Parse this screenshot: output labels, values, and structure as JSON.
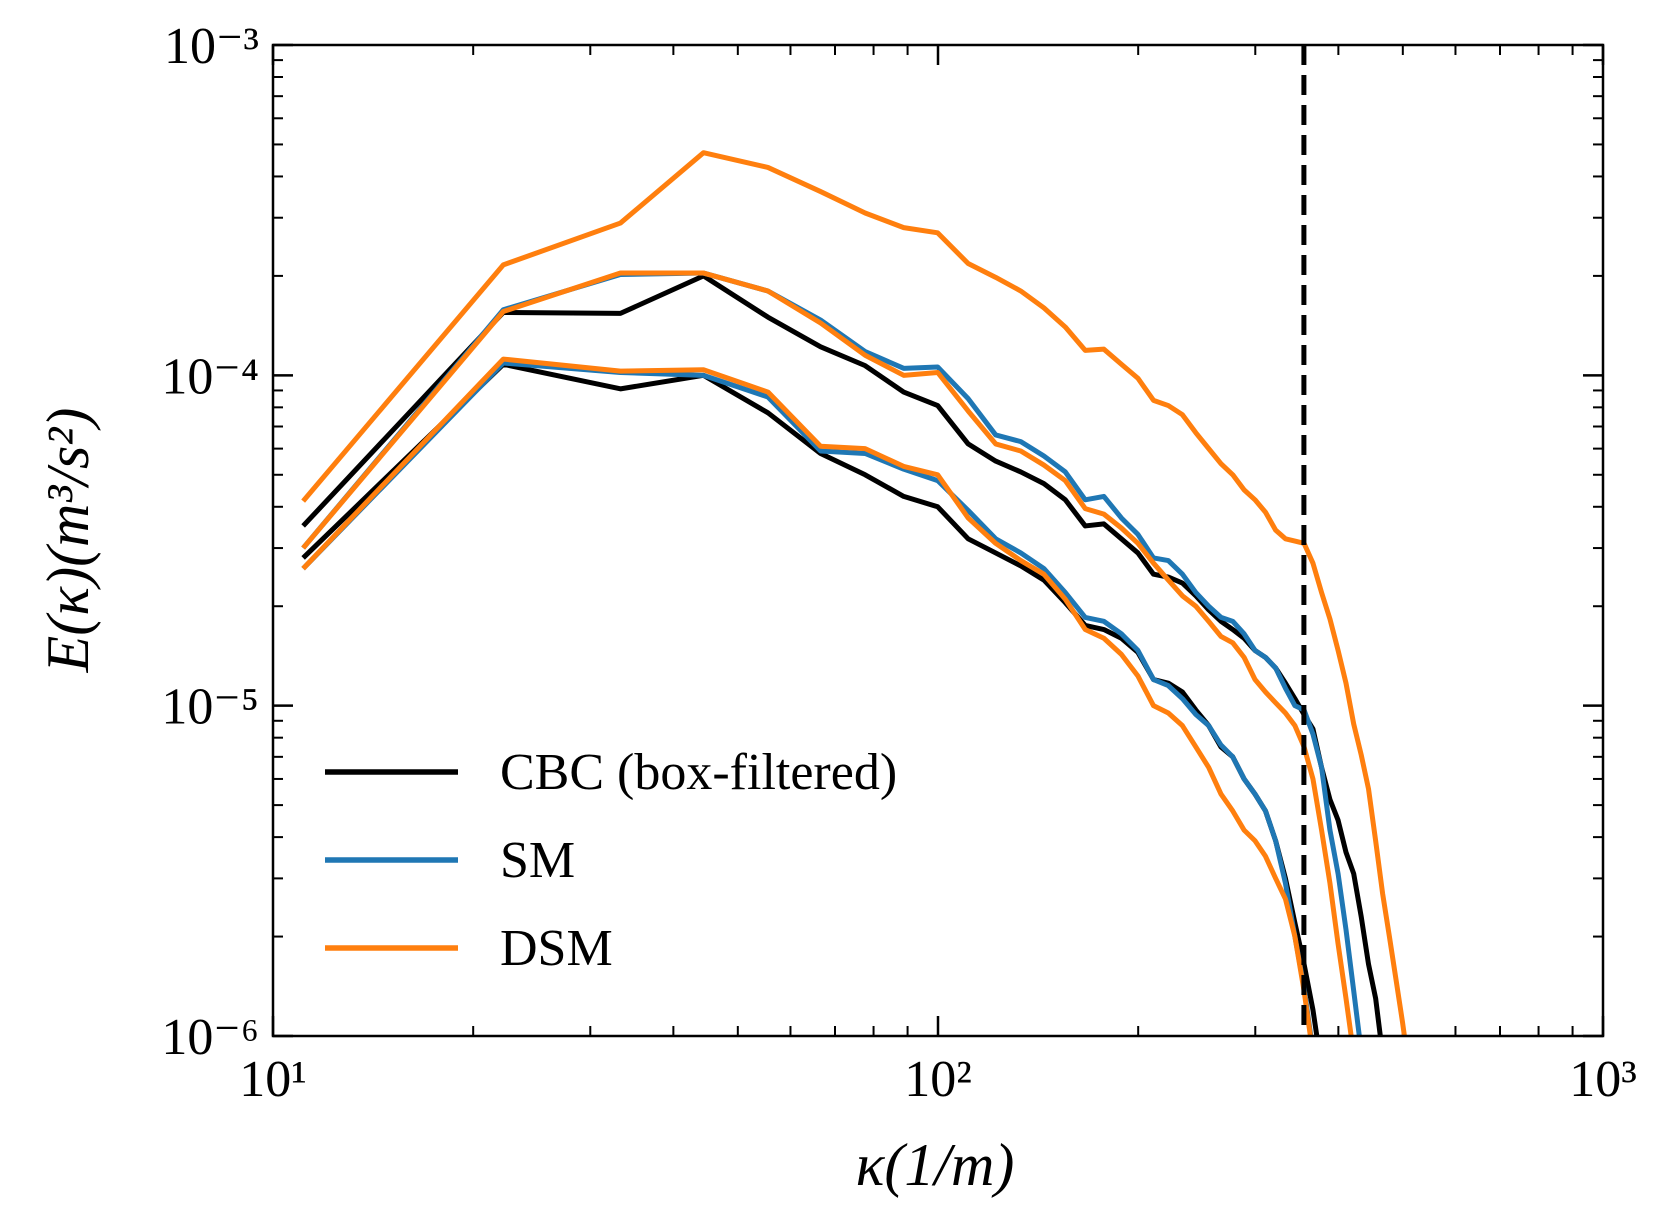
{
  "chart_data": {
    "type": "line",
    "xlabel": "κ(1/m)",
    "ylabel": "E(κ)(m³/s²)",
    "xscale": "log",
    "yscale": "log",
    "xlim": [
      10,
      1000
    ],
    "ylim": [
      1e-06,
      0.001
    ],
    "xticks": [
      {
        "value": 10,
        "label": "10¹"
      },
      {
        "value": 100,
        "label": "10²"
      },
      {
        "value": 1000,
        "label": "10³"
      }
    ],
    "yticks": [
      {
        "value": 1e-06,
        "label": "10⁻⁶"
      },
      {
        "value": 1e-05,
        "label": "10⁻⁵"
      },
      {
        "value": 0.0001,
        "label": "10⁻⁴"
      },
      {
        "value": 0.001,
        "label": "10⁻³"
      }
    ],
    "cutoff": 355,
    "legend": "lower left",
    "x": [
      11.1,
      22.2,
      33.3,
      44.4,
      55.5,
      66.6,
      77.7,
      88.8,
      99.9,
      111,
      122.1,
      133.2,
      144.3,
      155.4,
      166.5,
      177.6,
      188.7,
      199.8,
      210.9,
      222,
      233.1,
      244.2,
      255.3,
      266.4,
      277.5,
      288.6,
      299.7,
      310.8,
      321.9,
      333,
      344.1,
      355.2,
      366.3,
      377.4,
      388.5,
      399.6,
      410.7,
      421.8,
      432.9,
      444,
      455.1,
      466.2,
      477.3,
      488.4,
      499.5,
      510.6
    ],
    "series": [
      {
        "name": "CBC (box-filtered)",
        "color": "#000000",
        "values": [
          [
            3.5e-05,
            0.000155,
            0.000154,
            0.0002,
            0.00015,
            0.000122,
            0.000107,
            8.9e-05,
            8.1e-05,
            6.2e-05,
            5.5e-05,
            5.1e-05,
            4.7e-05,
            4.2e-05,
            3.5e-05,
            3.55e-05,
            3.2e-05,
            2.9e-05,
            2.5e-05,
            2.45e-05,
            2.35e-05,
            2.15e-05,
            1.95e-05,
            1.8e-05,
            1.7e-05,
            1.6e-05,
            1.47e-05,
            1.4e-05,
            1.3e-05,
            1.17e-05,
            1.05e-05,
            9.4e-06,
            8.5e-06,
            6.5e-06,
            5.2e-06,
            4.5e-06,
            3.6e-06,
            3.1e-06,
            2.3e-06,
            1.65e-06,
            1.3e-06,
            8.8e-07,
            null,
            null,
            null,
            null
          ],
          [
            2.8e-05,
            0.000108,
            9.1e-05,
            0.0001,
            7.7e-05,
            5.8e-05,
            5e-05,
            4.3e-05,
            4e-05,
            3.2e-05,
            2.9e-05,
            2.65e-05,
            2.4e-05,
            2.05e-05,
            1.75e-05,
            1.7e-05,
            1.6e-05,
            1.45e-05,
            1.2e-05,
            1.17e-05,
            1.1e-05,
            9.7e-06,
            8.7e-06,
            7.5e-06,
            7e-06,
            6e-06,
            5.4e-06,
            4.8e-06,
            3.9e-06,
            3e-06,
            2.2e-06,
            1.65e-06,
            1.2e-06,
            8e-07,
            null,
            null,
            null,
            null,
            null,
            null,
            null,
            null,
            null,
            null,
            null,
            null
          ]
        ]
      },
      {
        "name": "SM",
        "color": "#1f77b4",
        "values": [
          [
            3e-05,
            0.000158,
            0.000202,
            0.000204,
            0.00018,
            0.000147,
            0.000118,
            0.000105,
            0.000106,
            8.5e-05,
            6.6e-05,
            6.3e-05,
            5.7e-05,
            5.1e-05,
            4.2e-05,
            4.3e-05,
            3.7e-05,
            3.3e-05,
            2.8e-05,
            2.75e-05,
            2.5e-05,
            2.2e-05,
            2e-05,
            1.85e-05,
            1.8e-05,
            1.65e-05,
            1.47e-05,
            1.4e-05,
            1.3e-05,
            1.13e-05,
            1e-05,
            9.7e-06,
            8.2e-06,
            6.5e-06,
            4.2e-06,
            3.1e-06,
            2.1e-06,
            1.37e-06,
            9e-07,
            null,
            null,
            null,
            null,
            null,
            null,
            null
          ],
          [
            2.6e-05,
            0.000109,
            0.000102,
            0.0001,
            8.6e-05,
            5.9e-05,
            5.8e-05,
            5.2e-05,
            4.8e-05,
            3.9e-05,
            3.2e-05,
            2.9e-05,
            2.6e-05,
            2.2e-05,
            1.85e-05,
            1.8e-05,
            1.65e-05,
            1.47e-05,
            1.2e-05,
            1.15e-05,
            1.05e-05,
            9.4e-06,
            8.7e-06,
            7.6e-06,
            7e-06,
            6e-06,
            5.4e-06,
            4.8e-06,
            3.9e-06,
            2.9e-06,
            2e-06,
            1.4e-06,
            9e-07,
            null,
            null,
            null,
            null,
            null,
            null,
            null,
            null,
            null,
            null,
            null,
            null,
            null
          ]
        ]
      },
      {
        "name": "DSM",
        "color": "#ff7f0e",
        "values": [
          [
            4.16e-05,
            0.000216,
            0.000289,
            0.000472,
            0.000426,
            0.00036,
            0.00031,
            0.00028,
            0.00027,
            0.000218,
            0.000198,
            0.00018,
            0.00016,
            0.00014,
            0.000119,
            0.00012,
            0.000108,
            9.8e-05,
            8.4e-05,
            8.1e-05,
            7.6e-05,
            6.7e-05,
            6e-05,
            5.4e-05,
            5e-05,
            4.5e-05,
            4.2e-05,
            3.85e-05,
            3.4e-05,
            3.2e-05,
            3.15e-05,
            3.1e-05,
            2.7e-05,
            2.2e-05,
            1.83e-05,
            1.47e-05,
            1.17e-05,
            8.8e-06,
            7.1e-06,
            5.6e-06,
            3.9e-06,
            2.7e-06,
            2e-06,
            1.48e-06,
            1.1e-06,
            8e-07
          ],
          [
            3e-05,
            0.000156,
            0.000204,
            0.000204,
            0.00018,
            0.000144,
            0.000115,
            0.0001,
            0.000102,
            7.8e-05,
            6.2e-05,
            5.9e-05,
            5.35e-05,
            4.8e-05,
            3.95e-05,
            3.8e-05,
            3.45e-05,
            3.1e-05,
            2.7e-05,
            2.4e-05,
            2.15e-05,
            2e-05,
            1.8e-05,
            1.62e-05,
            1.55e-05,
            1.4e-05,
            1.2e-05,
            1.1e-05,
            1.02e-05,
            9.5e-06,
            8.7e-06,
            7.5e-06,
            6e-06,
            4.2e-06,
            2.9e-06,
            1.9e-06,
            1.3e-06,
            8.8e-07,
            null,
            null,
            null,
            null,
            null,
            null,
            null,
            null
          ],
          [
            2.6e-05,
            0.000112,
            0.000103,
            0.000104,
            8.9e-05,
            6.1e-05,
            6e-05,
            5.3e-05,
            5e-05,
            3.7e-05,
            3.1e-05,
            2.75e-05,
            2.5e-05,
            2.1e-05,
            1.7e-05,
            1.6e-05,
            1.43e-05,
            1.23e-05,
            1e-05,
            9.5e-06,
            8.7e-06,
            7.5e-06,
            6.5e-06,
            5.4e-06,
            4.8e-06,
            4.2e-06,
            3.9e-06,
            3.5e-06,
            3e-06,
            2.6e-06,
            2e-06,
            1.37e-06,
            8.8e-07,
            null,
            null,
            null,
            null,
            null,
            null,
            null,
            null,
            null,
            null,
            null,
            null,
            null
          ]
        ]
      }
    ]
  }
}
